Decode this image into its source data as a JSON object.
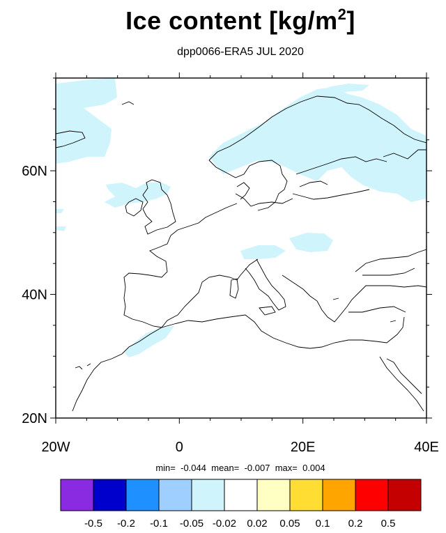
{
  "title": {
    "main": "Ice content  [kg/m",
    "superscript": "2",
    "close": "]"
  },
  "subtitle": "dpp0066-ERA5 JUL 2020",
  "map": {
    "lon_range": [
      -20,
      40
    ],
    "lat_range": [
      20,
      75
    ],
    "lon_ticks": [
      {
        "value": -20,
        "label": "20W"
      },
      {
        "value": 0,
        "label": "0"
      },
      {
        "value": 20,
        "label": "20E"
      },
      {
        "value": 40,
        "label": "40E"
      }
    ],
    "lat_ticks": [
      {
        "value": 20,
        "label": "20N"
      },
      {
        "value": 40,
        "label": "40N"
      },
      {
        "value": 60,
        "label": "60N"
      }
    ],
    "anomaly_fill_color": "#d0f4fc"
  },
  "stats": {
    "min_label": "min=",
    "min": "-0.044",
    "mean_label": "mean=",
    "mean": "-0.007",
    "max_label": "max=",
    "max": "0.004"
  },
  "colorbar": {
    "colors": [
      "#8a2be2",
      "#0000cd",
      "#1e90ff",
      "#9ecfff",
      "#d0f4fc",
      "#ffffff",
      "#ffffc4",
      "#ffdd33",
      "#ffa500",
      "#ff0000",
      "#c40000"
    ],
    "labels": [
      "-0.5",
      "-0.2",
      "-0.1",
      "-0.05",
      "-0.02",
      "0.02",
      "0.05",
      "0.1",
      "0.2",
      "0.5"
    ]
  }
}
